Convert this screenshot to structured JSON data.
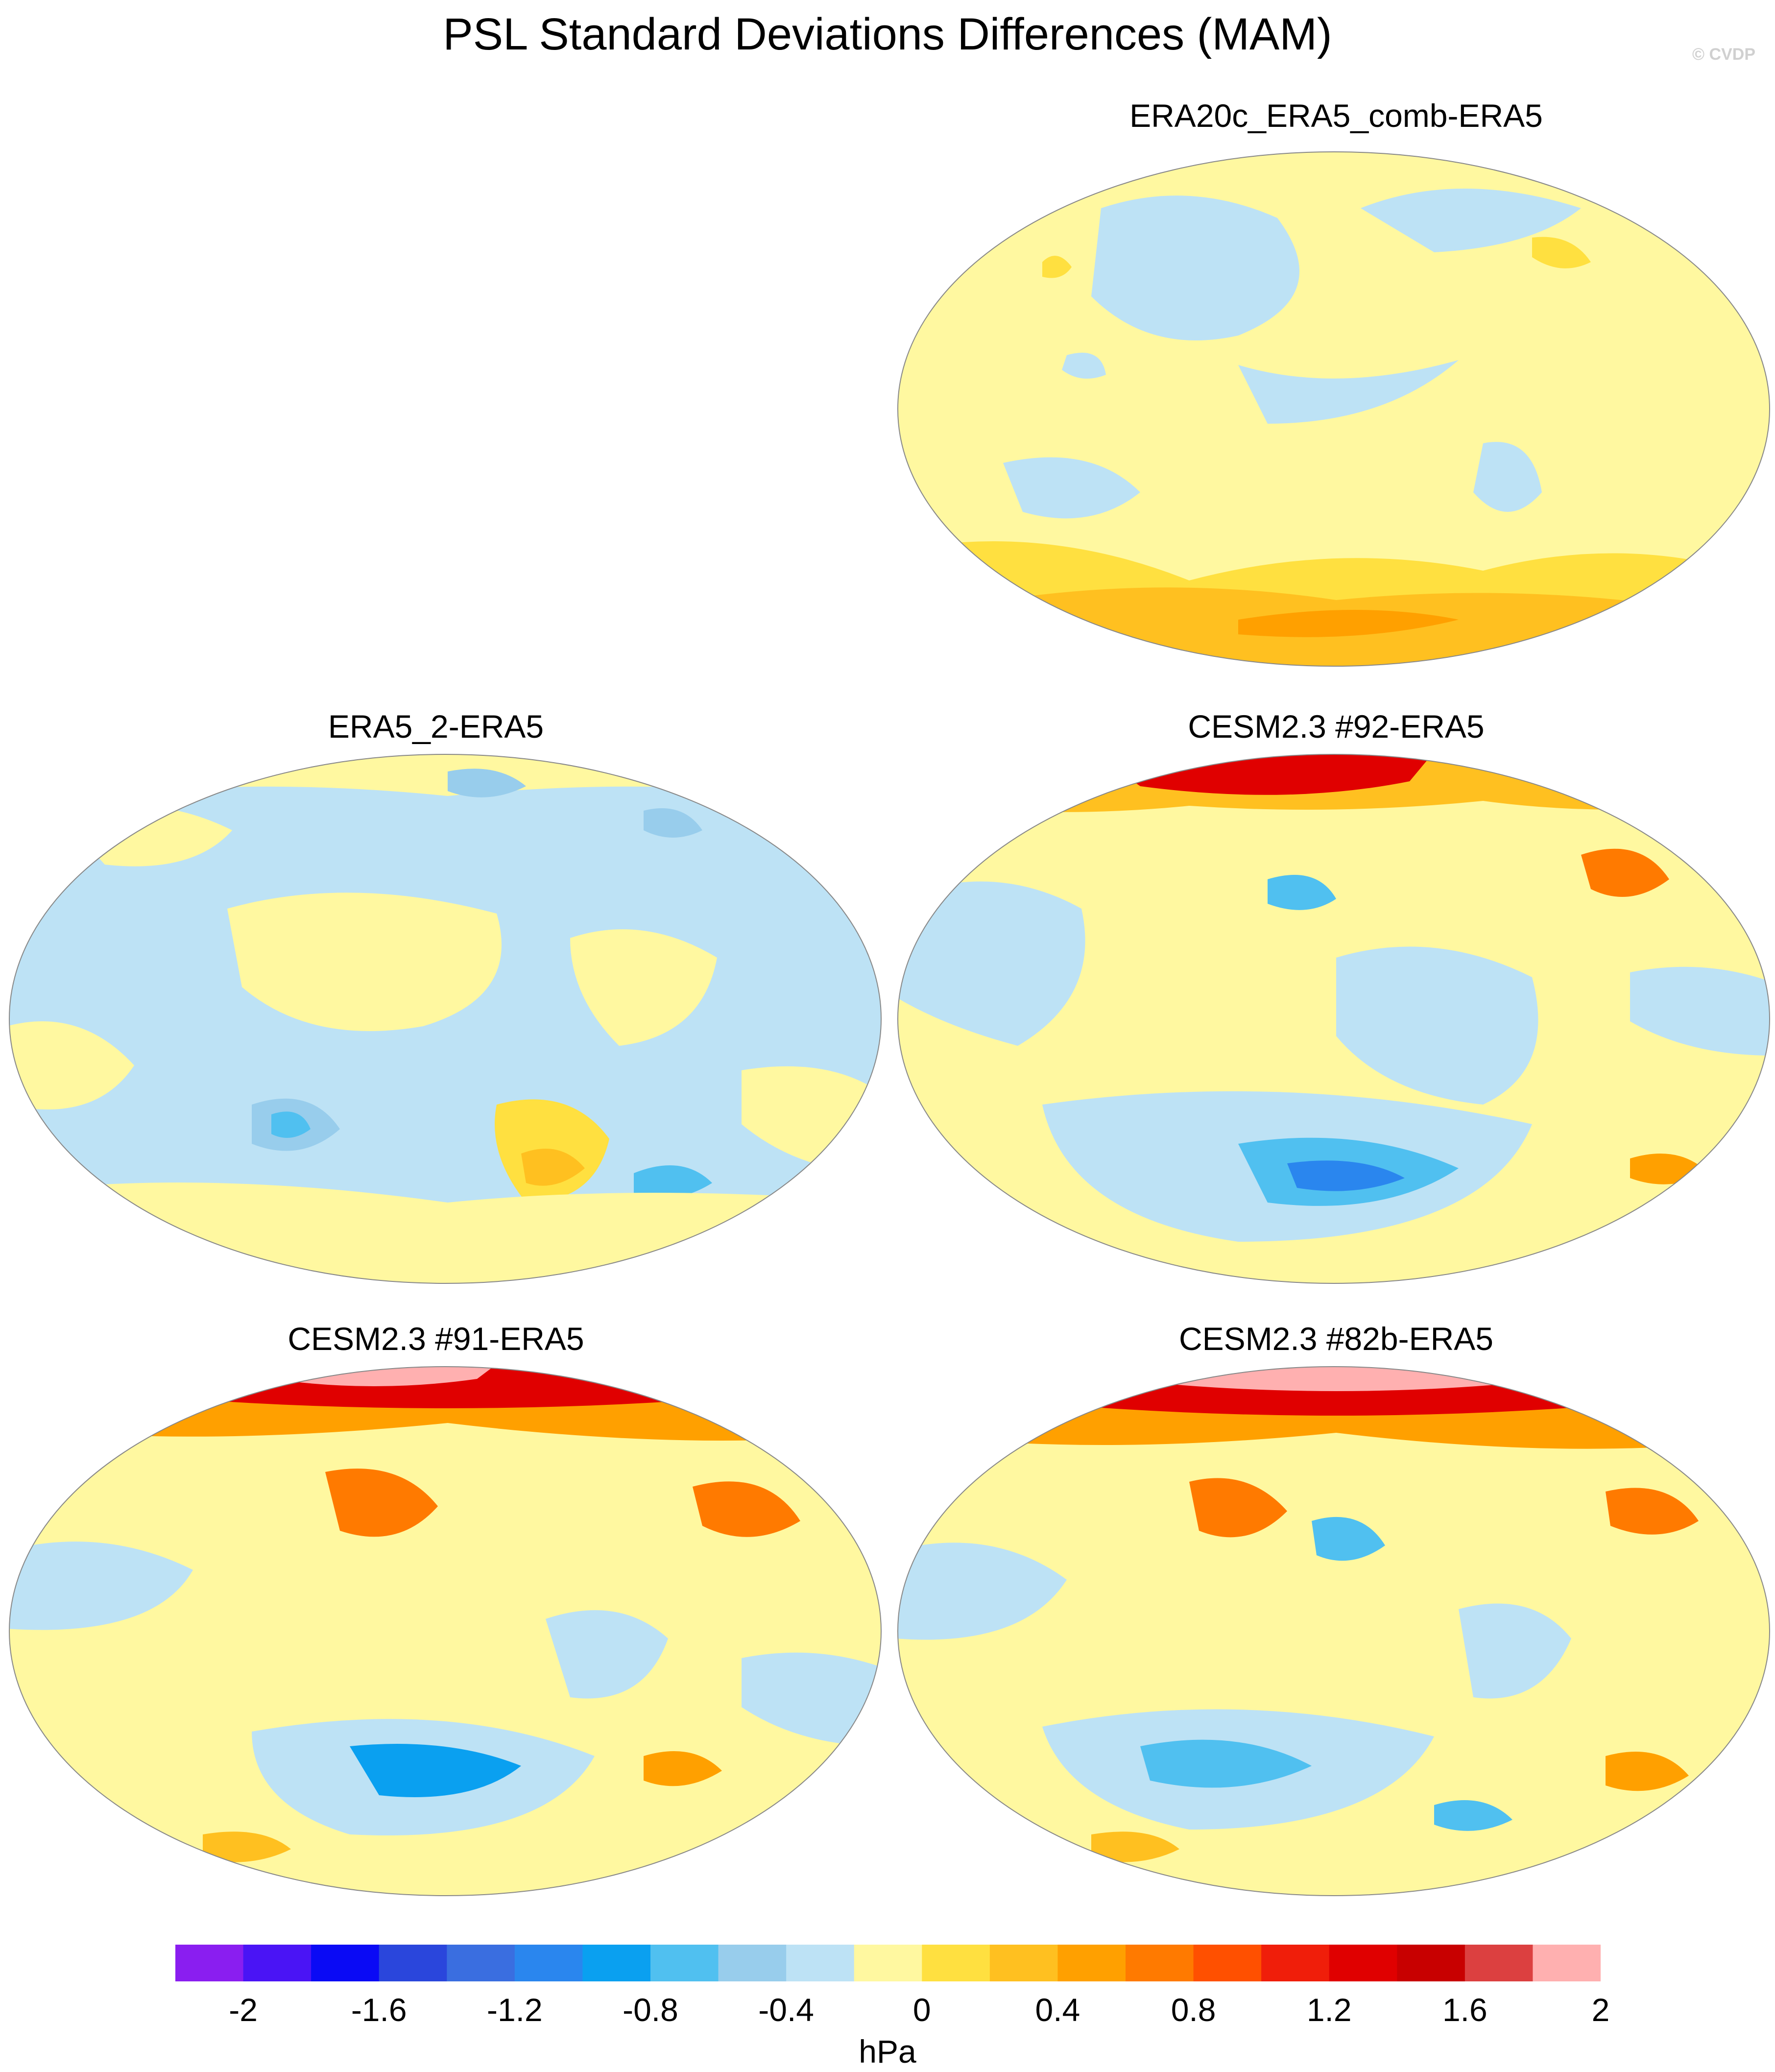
{
  "title": "PSL Standard Deviations Differences (MAM)",
  "watermark": "© CVDP",
  "panels": [
    {
      "title": "ERA20c_ERA5_comb-ERA5"
    },
    {
      "title": "ERA5_2-ERA5"
    },
    {
      "title": "CESM2.3 #92-ERA5"
    },
    {
      "title": "CESM2.3 #91-ERA5"
    },
    {
      "title": "CESM2.3 #82b-ERA5"
    }
  ],
  "colorbar": {
    "units": "hPa",
    "tick_labels": [
      "-2",
      "-1.6",
      "-1.2",
      "-0.8",
      "-0.4",
      "0",
      "0.4",
      "0.8",
      "1.2",
      "1.6",
      "2"
    ],
    "colors": [
      "#8a1ef0",
      "#4a14f5",
      "#0a0af5",
      "#2a46dc",
      "#3a6ee0",
      "#2a86ee",
      "#0aa0f0",
      "#50c0f0",
      "#98cdec",
      "#bde2f5",
      "#fff8a0",
      "#ffe040",
      "#ffc020",
      "#ffa000",
      "#ff7a00",
      "#ff5000",
      "#f01e0a",
      "#e00000",
      "#c80000",
      "#dc4040",
      "#ffb0b0"
    ]
  }
}
